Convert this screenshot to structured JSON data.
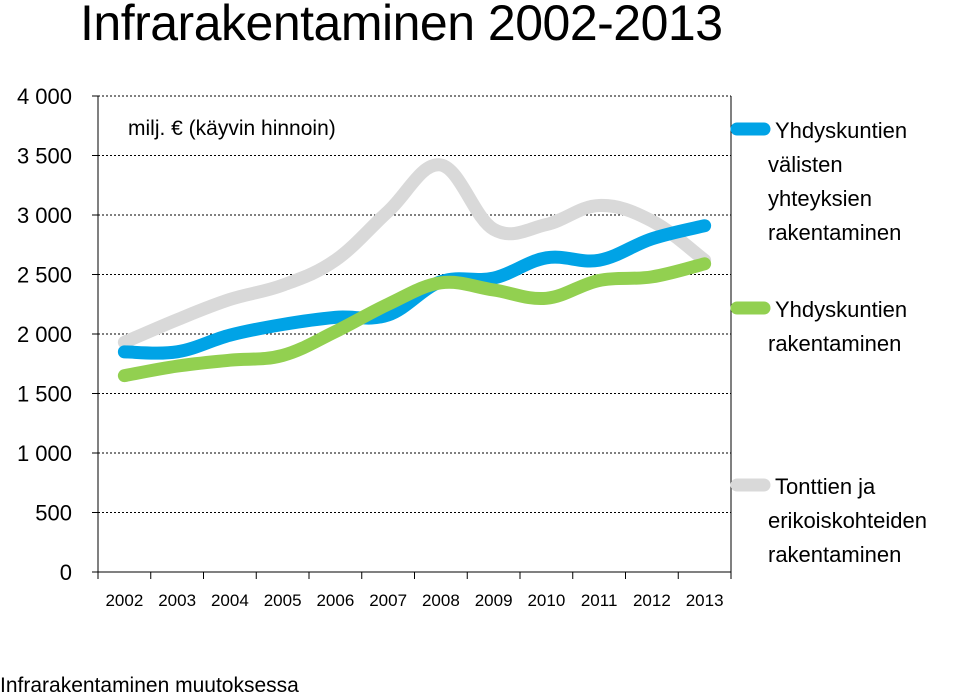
{
  "title": "Infrarakentaminen 2002-2013",
  "footer": "Infrarakentaminen muutoksessa",
  "chart_data": {
    "type": "line",
    "title": "Infrarakentaminen 2002-2013",
    "annotation": "milj. € (käyvin hinnoin)",
    "xlabel": "",
    "ylabel": "",
    "x": [
      "2002",
      "2003",
      "2004",
      "2005",
      "2006",
      "2007",
      "2008",
      "2009",
      "2010",
      "2011",
      "2012",
      "2013"
    ],
    "ylim": [
      0,
      4000
    ],
    "yticks": [
      {
        "value": 4000,
        "label": "4 000"
      },
      {
        "value": 3500,
        "label": "3 500"
      },
      {
        "value": 3000,
        "label": "3 000"
      },
      {
        "value": 2500,
        "label": "2 500"
      },
      {
        "value": 2000,
        "label": "2 000"
      },
      {
        "value": 1500,
        "label": "1 500"
      },
      {
        "value": 1000,
        "label": "1 000"
      },
      {
        "value": 500,
        "label": "500"
      },
      {
        "value": 0,
        "label": "0"
      }
    ],
    "grid": true,
    "legend_position": "right",
    "series": [
      {
        "name": "Yhdyskuntien välisten yhteyksien rakentaminen",
        "legend_lines": [
          "Yhdyskuntien",
          "välisten",
          "yhteyksien",
          "rakentaminen"
        ],
        "color": "#00a3e6",
        "values": [
          1850,
          1850,
          1990,
          2080,
          2140,
          2160,
          2440,
          2470,
          2640,
          2620,
          2800,
          2910
        ]
      },
      {
        "name": "Yhdyskuntien rakentaminen",
        "legend_lines": [
          "Yhdyskuntien",
          "rakentaminen"
        ],
        "color": "#92d050",
        "values": [
          1650,
          1730,
          1780,
          1820,
          2020,
          2250,
          2430,
          2370,
          2300,
          2450,
          2480,
          2590
        ]
      },
      {
        "name": "Tonttien ja erikoiskohteiden rakentaminen",
        "legend_lines": [
          "Tonttien ja",
          "erikoiskohteiden",
          "rakentaminen"
        ],
        "color": "#d9d9d9",
        "values": [
          1930,
          2120,
          2290,
          2410,
          2620,
          3030,
          3420,
          2880,
          2920,
          3080,
          2950,
          2620
        ]
      }
    ]
  }
}
